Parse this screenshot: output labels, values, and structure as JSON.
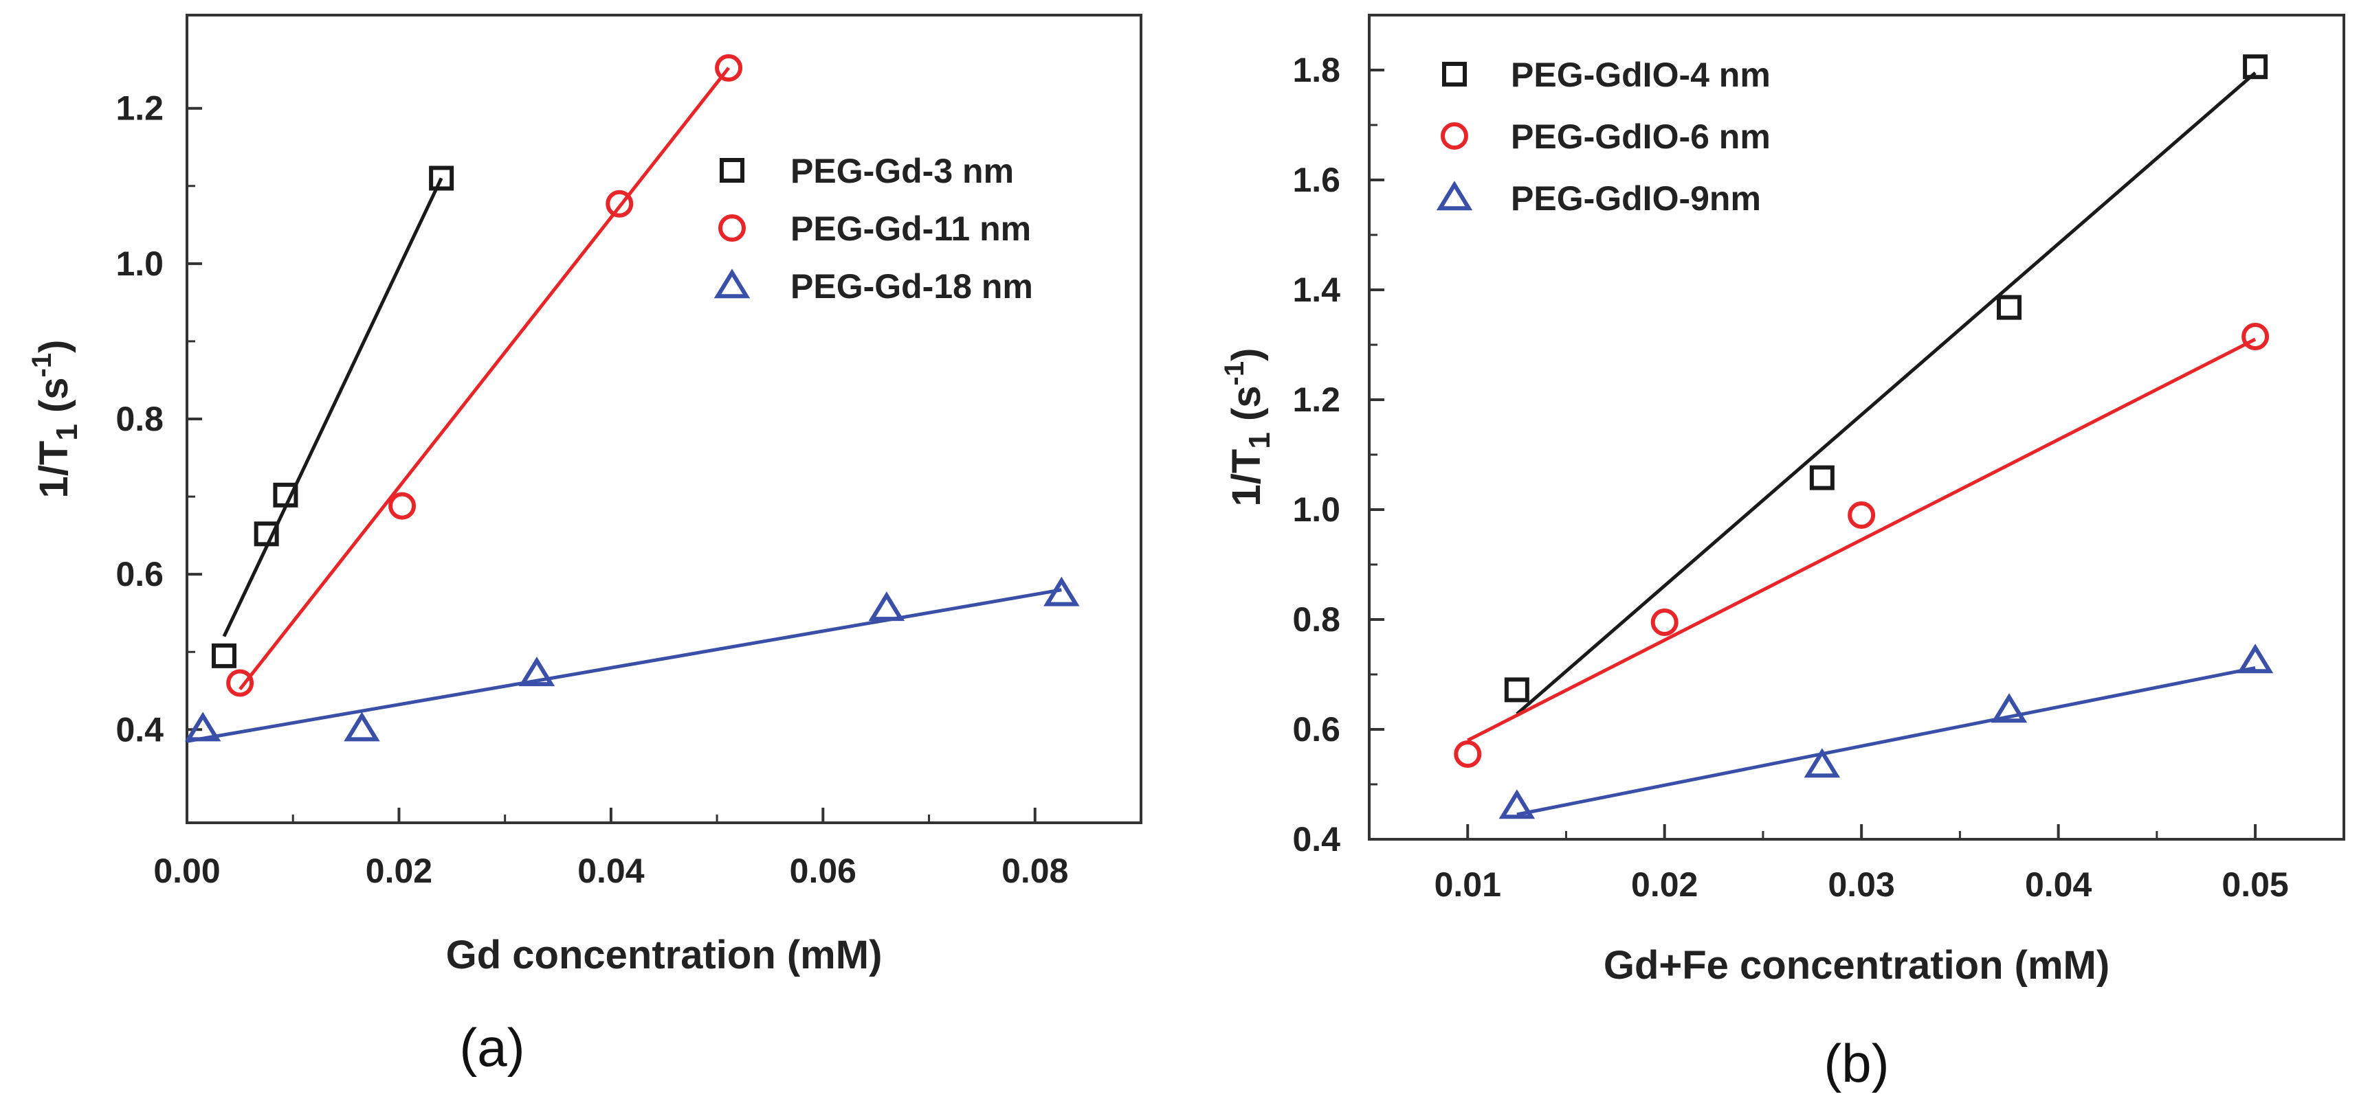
{
  "chart_data": [
    {
      "type": "scatter",
      "panel_label": "(a)",
      "xlabel": "Gd concentration (mM)",
      "ylabel": "1/T",
      "ylabel_sub": "1",
      "ylabel_unit_open": " (s",
      "ylabel_sup": "-1",
      "ylabel_unit_close": ")",
      "xlim": [
        0,
        0.09
      ],
      "ylim": [
        0.28,
        1.32
      ],
      "xticks": [
        0.0,
        0.02,
        0.04,
        0.06,
        0.08
      ],
      "xtick_labels": [
        "0.00",
        "0.02",
        "0.04",
        "0.06",
        "0.08"
      ],
      "yticks": [
        0.4,
        0.6,
        0.8,
        1.0,
        1.2
      ],
      "ytick_labels": [
        "0.4",
        "0.6",
        "0.8",
        "1.0",
        "1.2"
      ],
      "legend_position": "top-right",
      "series": [
        {
          "name": "PEG-Gd-3 nm",
          "marker": "square",
          "color": "#1a1a1a",
          "points": [
            [
              0.0035,
              0.495
            ],
            [
              0.0075,
              0.652
            ],
            [
              0.0093,
              0.702
            ],
            [
              0.024,
              1.11
            ]
          ],
          "fit": [
            [
              0.0035,
              0.52
            ],
            [
              0.024,
              1.11
            ]
          ]
        },
        {
          "name": "PEG-Gd-11 nm",
          "marker": "circle",
          "color": "#e8262a",
          "points": [
            [
              0.005,
              0.46
            ],
            [
              0.0203,
              0.688
            ],
            [
              0.0408,
              1.077
            ],
            [
              0.0511,
              1.252
            ]
          ],
          "fit": [
            [
              0.005,
              0.452
            ],
            [
              0.0511,
              1.252
            ]
          ]
        },
        {
          "name": "PEG-Gd-18 nm",
          "marker": "triangle",
          "color": "#3a4fa8",
          "points": [
            [
              0.0015,
              0.401
            ],
            [
              0.0165,
              0.401
            ],
            [
              0.033,
              0.472
            ],
            [
              0.066,
              0.556
            ],
            [
              0.0825,
              0.575
            ]
          ],
          "fit": [
            [
              0.0,
              0.385
            ],
            [
              0.0825,
              0.58
            ]
          ]
        }
      ]
    },
    {
      "type": "scatter",
      "panel_label": "(b)",
      "xlabel": "Gd+Fe concentration (mM)",
      "ylabel": "1/T",
      "ylabel_sub": "1",
      "ylabel_unit_open": " (s",
      "ylabel_sup": "-1",
      "ylabel_unit_close": ")",
      "xlim": [
        0.005,
        0.0545
      ],
      "ylim": [
        0.4,
        1.9
      ],
      "xticks": [
        0.01,
        0.02,
        0.03,
        0.04,
        0.05
      ],
      "xtick_labels": [
        "0.01",
        "0.02",
        "0.03",
        "0.04",
        "0.05"
      ],
      "yticks": [
        0.4,
        0.6,
        0.8,
        1.0,
        1.2,
        1.4,
        1.6,
        1.8
      ],
      "ytick_labels": [
        "0.4",
        "0.6",
        "0.8",
        "1.0",
        "1.2",
        "1.4",
        "1.6",
        "1.8"
      ],
      "legend_position": "top-left",
      "series": [
        {
          "name": "PEG-GdIO-4 nm",
          "marker": "square",
          "color": "#1a1a1a",
          "points": [
            [
              0.0125,
              0.672
            ],
            [
              0.028,
              1.058
            ],
            [
              0.0375,
              1.368
            ],
            [
              0.05,
              1.806
            ]
          ],
          "fit": [
            [
              0.0125,
              0.628
            ],
            [
              0.05,
              1.795
            ]
          ]
        },
        {
          "name": "PEG-GdIO-6 nm",
          "marker": "circle",
          "color": "#e8262a",
          "points": [
            [
              0.01,
              0.555
            ],
            [
              0.02,
              0.795
            ],
            [
              0.03,
              0.99
            ],
            [
              0.05,
              1.315
            ]
          ],
          "fit": [
            [
              0.01,
              0.58
            ],
            [
              0.05,
              1.31
            ]
          ]
        },
        {
          "name": "PEG-GdIO-9nm",
          "marker": "triangle",
          "color": "#3a4fa8",
          "points": [
            [
              0.0125,
              0.46
            ],
            [
              0.028,
              0.535
            ],
            [
              0.0375,
              0.635
            ],
            [
              0.05,
              0.725
            ]
          ],
          "fit": [
            [
              0.0125,
              0.445
            ],
            [
              0.05,
              0.712
            ]
          ]
        }
      ]
    }
  ]
}
